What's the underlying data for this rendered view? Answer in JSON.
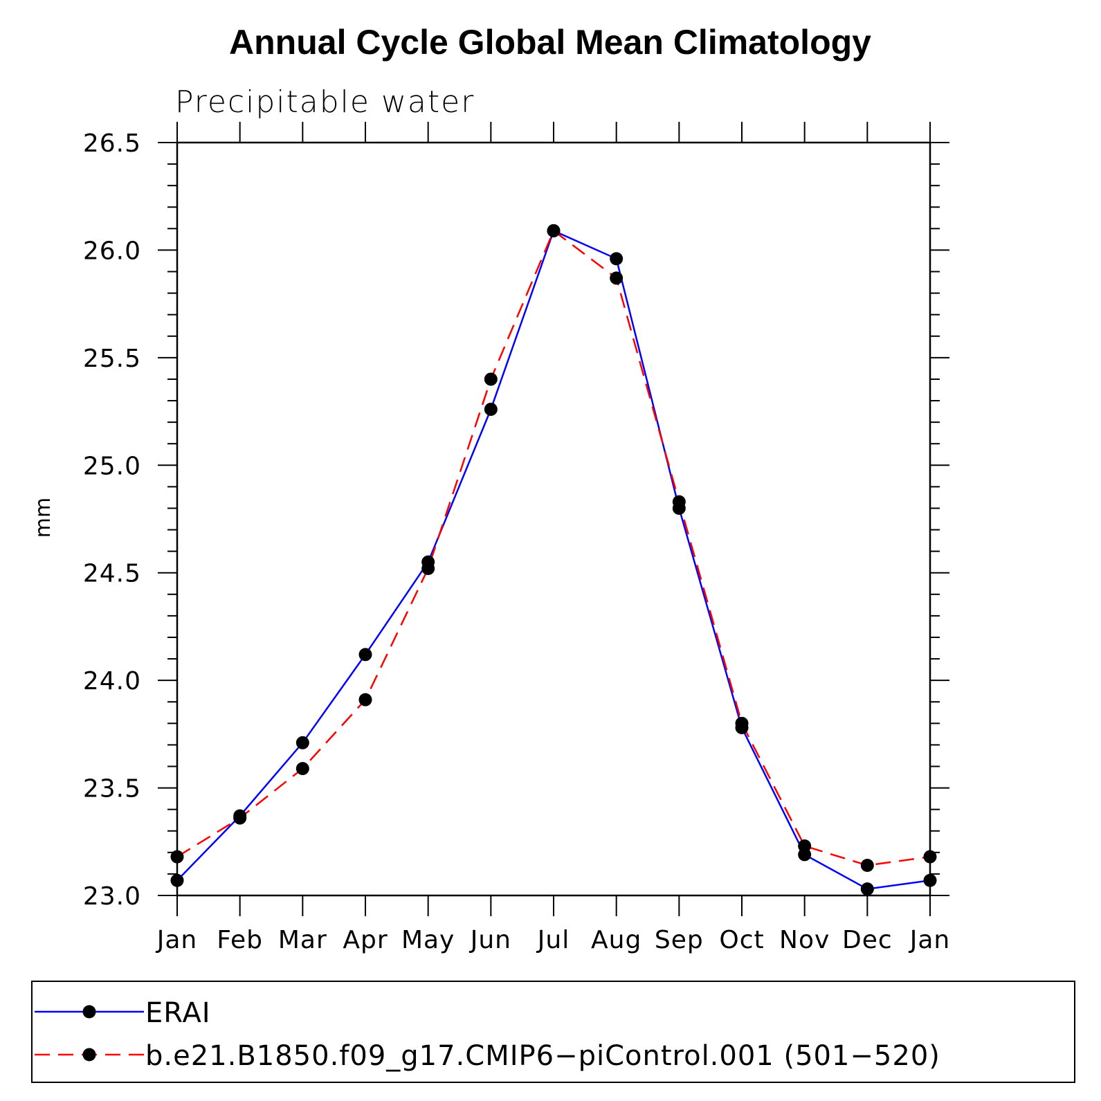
{
  "chart_data": {
    "type": "line",
    "title": "Annual Cycle Global Mean Climatology",
    "subtitle": "Precipitable water",
    "ylabel": "mm",
    "xlabel": "",
    "categories": [
      "Jan",
      "Feb",
      "Mar",
      "Apr",
      "May",
      "Jun",
      "Jul",
      "Aug",
      "Sep",
      "Oct",
      "Nov",
      "Dec",
      "Jan"
    ],
    "ylim": [
      23.0,
      26.5
    ],
    "yticks": [
      "23.0",
      "23.5",
      "24.0",
      "24.5",
      "25.0",
      "25.5",
      "26.0",
      "26.5"
    ],
    "series": [
      {
        "name": "ERAI",
        "color": "#0000ff",
        "dash": "solid",
        "marker": "filled-circle",
        "values": [
          23.07,
          23.37,
          23.71,
          24.12,
          24.55,
          25.26,
          26.09,
          25.96,
          24.8,
          23.78,
          23.19,
          23.03,
          23.07
        ]
      },
      {
        "name": "b.e21.B1850.f09_g17.CMIP6−piControl.001 (501−520)",
        "color": "#ff0000",
        "dash": "dashed",
        "marker": "filled-circle",
        "values": [
          23.18,
          23.36,
          23.59,
          23.91,
          24.52,
          25.4,
          26.09,
          25.87,
          24.83,
          23.8,
          23.23,
          23.14,
          23.18
        ]
      }
    ],
    "legend": "bottom"
  }
}
